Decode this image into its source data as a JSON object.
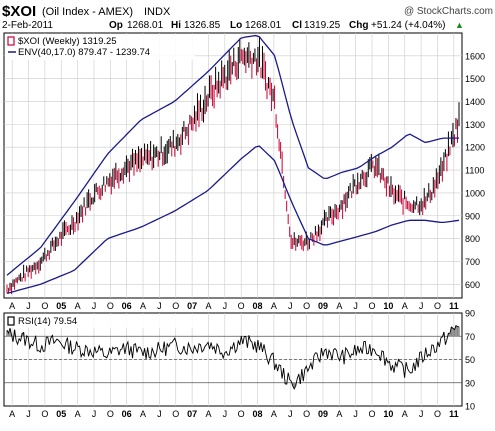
{
  "header": {
    "symbol": "$XOI",
    "name": "(Oil Index - AMEX)",
    "category": "INDX",
    "watermark": "@ StockCharts.com",
    "date": "2-Feb-2011",
    "op_label": "Op",
    "op": "1268.01",
    "hi_label": "Hi",
    "hi": "1326.85",
    "lo_label": "Lo",
    "lo": "1268.01",
    "cl_label": "Cl",
    "cl": "1319.25",
    "chg_label": "Chg",
    "chg": "+51.24 (+4.04%)",
    "chg_arrow": "▲"
  },
  "colors": {
    "price_up": "#000000",
    "price_down": "#cc0033",
    "envelope": "#1a1a8c",
    "rsi_line": "#000000",
    "rsi_fill": "#888888",
    "grid": "#cccccc",
    "axis": "#000000"
  },
  "chart_data": [
    {
      "type": "line",
      "name": "price-panel",
      "legend": [
        {
          "label": "$XOI (Weekly) 1319.25",
          "swatch": "price_down"
        },
        {
          "label": "ENV(40,17.0) 879.47 - 1239.74",
          "swatch": "envelope"
        }
      ],
      "x_ticks": [
        "A",
        "J",
        "O",
        "05",
        "A",
        "J",
        "O",
        "06",
        "A",
        "J",
        "O",
        "07",
        "A",
        "J",
        "O",
        "08",
        "A",
        "J",
        "O",
        "09",
        "A",
        "J",
        "O",
        "10",
        "A",
        "J",
        "O",
        "11"
      ],
      "ylim": [
        540,
        1700
      ],
      "y_ticks": [
        600,
        700,
        800,
        900,
        1000,
        1100,
        1200,
        1300,
        1400,
        1500,
        1600
      ],
      "series": [
        {
          "name": "$XOI (Weekly) 1319.25",
          "x": [
            0,
            1,
            2,
            3,
            4,
            5,
            6,
            7,
            8,
            9,
            10,
            11,
            12,
            13,
            14,
            15,
            16,
            17,
            18,
            19,
            20,
            21,
            22,
            23,
            24,
            25,
            26,
            27
          ],
          "values": [
            580,
            640,
            700,
            790,
            870,
            980,
            1050,
            1110,
            1140,
            1170,
            1210,
            1300,
            1420,
            1510,
            1600,
            1590,
            1400,
            780,
            790,
            870,
            950,
            1060,
            1120,
            1000,
            950,
            960,
            1100,
            1320
          ]
        },
        {
          "name": "ENV(40,17.0) 879.47 - 1239.74 upper",
          "x": [
            0,
            2,
            4,
            6,
            8,
            10,
            12,
            14,
            15,
            16,
            17,
            18,
            19,
            20,
            21,
            22,
            23,
            24,
            25,
            26,
            27
          ],
          "values": [
            640,
            760,
            960,
            1170,
            1320,
            1400,
            1530,
            1680,
            1690,
            1600,
            1320,
            1110,
            1060,
            1090,
            1110,
            1160,
            1200,
            1260,
            1220,
            1240,
            1240
          ]
        },
        {
          "name": "ENV(40,17.0) 879.47 - 1239.74 lower",
          "x": [
            0,
            2,
            4,
            6,
            8,
            10,
            12,
            14,
            15,
            16,
            17,
            18,
            19,
            20,
            21,
            22,
            23,
            24,
            25,
            26,
            27
          ],
          "values": [
            560,
            600,
            660,
            800,
            850,
            920,
            1010,
            1150,
            1210,
            1140,
            960,
            800,
            770,
            790,
            810,
            830,
            860,
            880,
            880,
            870,
            880
          ]
        }
      ]
    },
    {
      "type": "line",
      "name": "rsi-panel",
      "legend": [
        {
          "label": "RSI(14) 79.54",
          "swatch": "rsi_line"
        }
      ],
      "x_ticks": [
        "A",
        "J",
        "O",
        "05",
        "A",
        "J",
        "O",
        "06",
        "A",
        "J",
        "O",
        "07",
        "A",
        "J",
        "O",
        "08",
        "A",
        "J",
        "O",
        "09",
        "A",
        "J",
        "O",
        "10",
        "A",
        "J",
        "O",
        "11"
      ],
      "ylim": [
        10,
        90
      ],
      "y_ticks": [
        10,
        30,
        50,
        70,
        90
      ],
      "reference_lines": [
        30,
        50,
        70
      ],
      "series": [
        {
          "name": "RSI(14) 79.54",
          "x": [
            0,
            1,
            2,
            3,
            4,
            5,
            6,
            7,
            8,
            9,
            10,
            11,
            12,
            13,
            14,
            15,
            16,
            17,
            18,
            19,
            20,
            21,
            22,
            23,
            24,
            25,
            26,
            27
          ],
          "values": [
            72,
            68,
            62,
            66,
            60,
            58,
            54,
            60,
            56,
            58,
            62,
            60,
            64,
            57,
            66,
            62,
            47,
            28,
            42,
            58,
            52,
            58,
            60,
            45,
            40,
            55,
            66,
            79.54
          ]
        }
      ]
    }
  ]
}
